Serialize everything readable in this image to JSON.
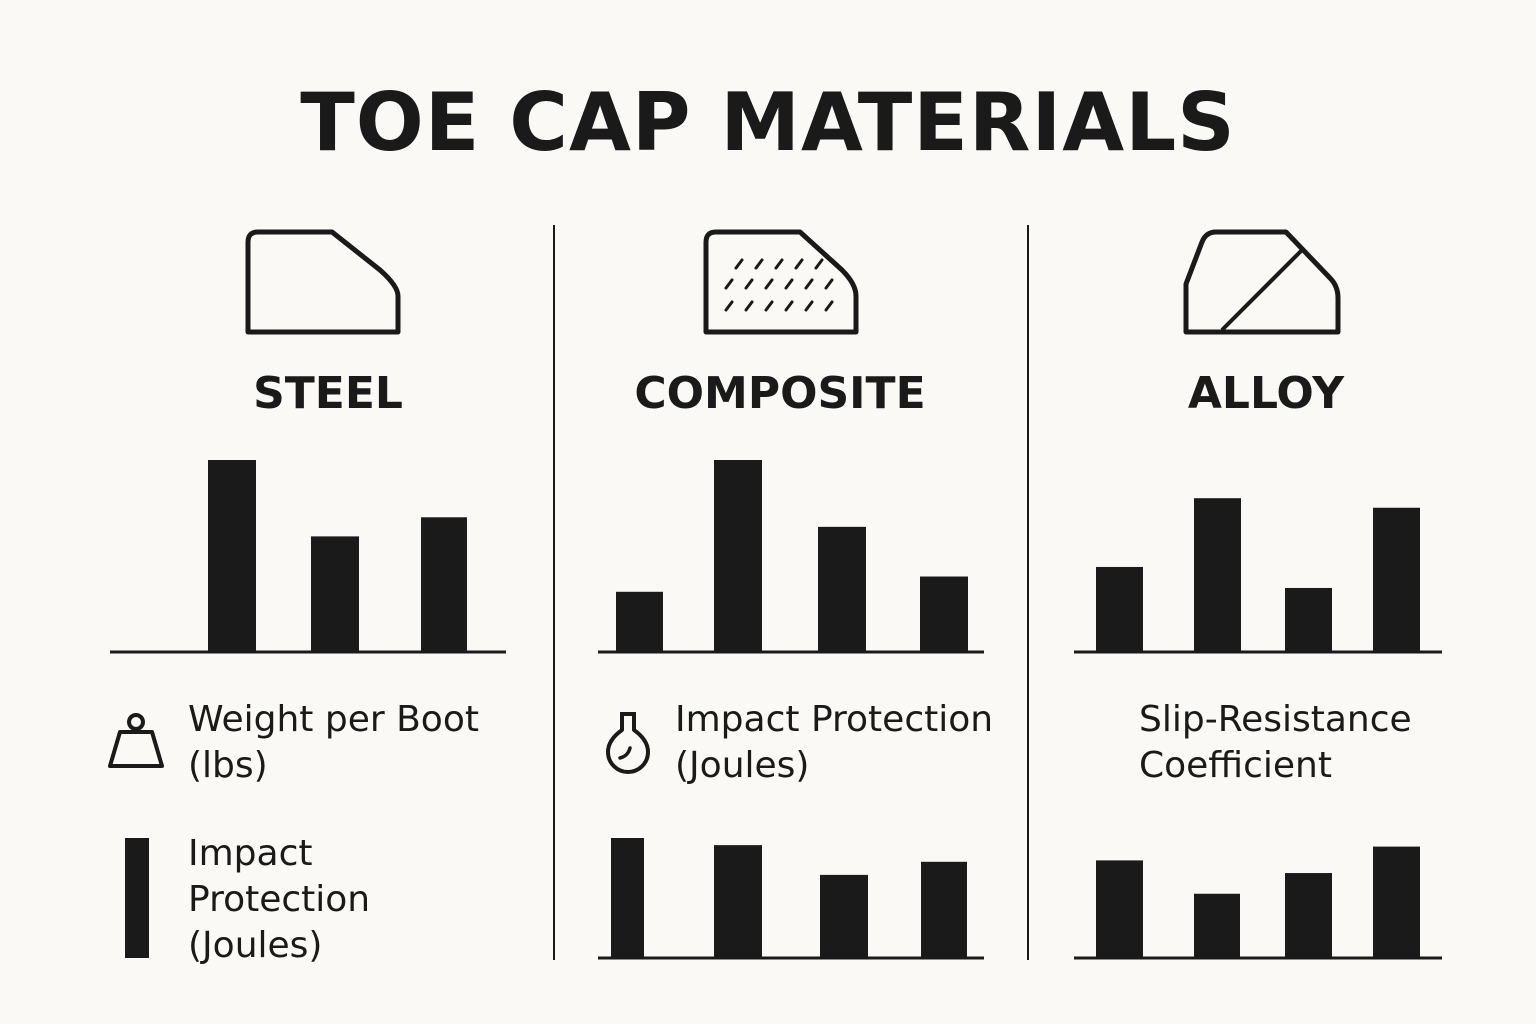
{
  "title": "TOE CAP MATERIALS",
  "columns": [
    {
      "name": "STEEL",
      "icon": "steel-toe-cap-icon",
      "legend_label": "Weight per Boot (lbs)",
      "legend_icon": "weight-icon",
      "legend2_label": "Impact Protection (Joules)",
      "legend2_icon": "bar-icon"
    },
    {
      "name": "COMPOSITE",
      "icon": "composite-toe-cap-icon",
      "legend_label": "Impact Protection (Joules)",
      "legend_icon": "flask-icon"
    },
    {
      "name": "ALLOY",
      "icon": "alloy-toe-cap-icon",
      "legend_label": "Slip-Resistance Coefficient"
    }
  ],
  "chart_data": [
    {
      "type": "bar",
      "panel": "STEEL",
      "values": [
        1.0,
        0.6,
        0.7
      ],
      "ylim": [
        0,
        1
      ]
    },
    {
      "type": "bar",
      "panel": "COMPOSITE",
      "values": [
        0.31,
        1.0,
        0.65,
        0.39
      ],
      "ylim": [
        0,
        1
      ]
    },
    {
      "type": "bar",
      "panel": "ALLOY",
      "values": [
        0.44,
        0.8,
        0.33,
        0.75
      ],
      "ylim": [
        0,
        1
      ]
    },
    {
      "type": "bar",
      "panel": "COMPOSITE-lower",
      "values": [
        1.0,
        0.94,
        0.69,
        0.8
      ],
      "ylim": [
        0,
        1
      ]
    },
    {
      "type": "bar",
      "panel": "ALLOY-lower",
      "values": [
        0.84,
        0.55,
        0.73,
        0.96
      ],
      "ylim": [
        0,
        1
      ]
    }
  ]
}
